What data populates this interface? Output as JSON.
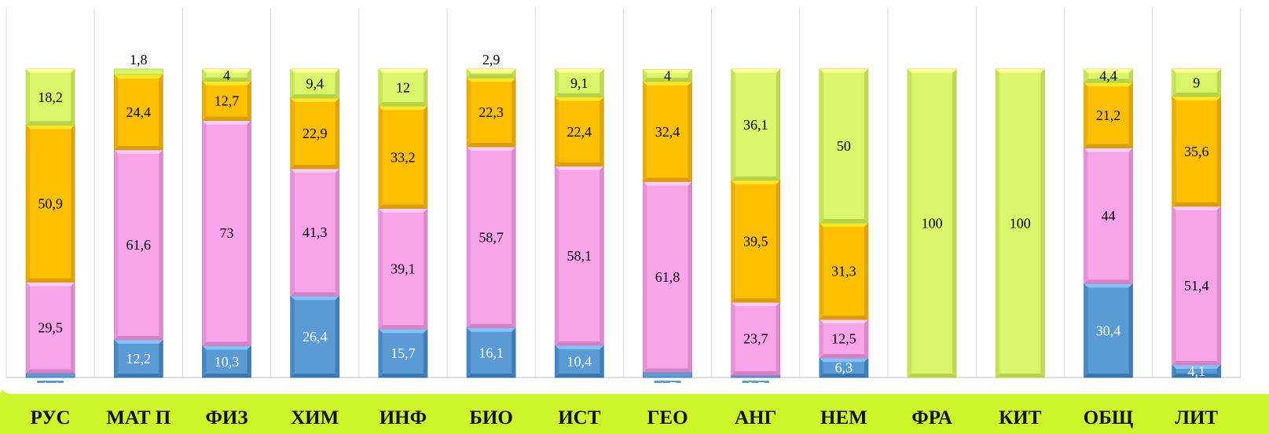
{
  "chart_data": {
    "type": "bar",
    "stacked": true,
    "categories": [
      "РУС",
      "МАТ П",
      "ФИЗ",
      "ХИМ",
      "ИНФ",
      "БИО",
      "ИСТ",
      "ГЕО",
      "АНГ",
      "НЕМ",
      "ФРА",
      "КИТ",
      "ОБЩ",
      "ЛИТ"
    ],
    "series": [
      {
        "color": "#5b9bd5",
        "values": [
          1.4,
          12.2,
          10.3,
          26.4,
          15.7,
          16.1,
          10.4,
          1.7,
          0.7,
          6.3,
          0,
          0,
          30.4,
          4.1
        ],
        "labels": [
          "1,4",
          "12,2",
          "10,3",
          "26,4",
          "15,7",
          "16,1",
          "10,4",
          "1,7",
          "0,7",
          "6,3",
          "",
          "",
          "30,4",
          "4,1"
        ]
      },
      {
        "color": "#f7a4e8",
        "values": [
          29.5,
          61.6,
          73,
          41.3,
          39.1,
          58.7,
          58.1,
          61.8,
          23.7,
          12.5,
          0,
          0,
          44,
          51.4
        ],
        "labels": [
          "29,5",
          "61,6",
          "73",
          "41,3",
          "39,1",
          "58,7",
          "58,1",
          "61,8",
          "23,7",
          "12,5",
          "",
          "",
          "44",
          "51,4"
        ]
      },
      {
        "color": "#fdc000",
        "values": [
          50.9,
          24.4,
          12.7,
          22.9,
          33.2,
          22.3,
          22.4,
          32.4,
          39.5,
          31.3,
          0,
          0,
          21.2,
          35.6
        ],
        "labels": [
          "50,9",
          "24,4",
          "12,7",
          "22,9",
          "33,2",
          "22,3",
          "22,4",
          "32,4",
          "39,5",
          "31,3",
          "",
          "",
          "21,2",
          "35,6"
        ]
      },
      {
        "color": "#d9f56a",
        "values": [
          18.2,
          1.8,
          4,
          9.4,
          12,
          2.9,
          9.1,
          4,
          36.1,
          50,
          100,
          100,
          4.4,
          9
        ],
        "labels": [
          "18,2",
          "1,8",
          "4",
          "9,4",
          "12",
          "2,9",
          "9,1",
          "4",
          "36,1",
          "50",
          "100",
          "100",
          "4,4",
          "9"
        ]
      }
    ],
    "ylim": [
      0,
      100
    ],
    "grid": true,
    "legend": "none"
  }
}
